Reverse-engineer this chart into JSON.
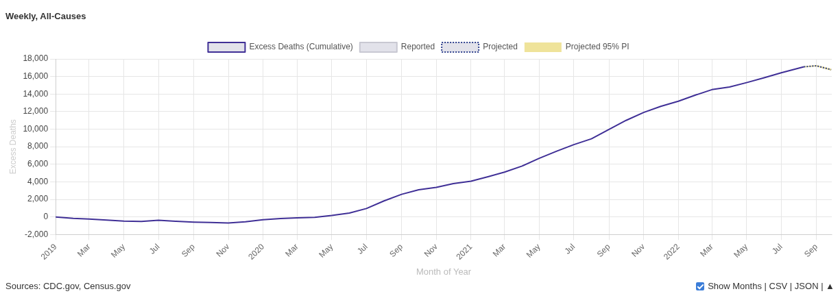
{
  "chart_data": {
    "type": "line",
    "title": "Weekly, All-Causes",
    "xlabel": "Month of Year",
    "ylabel": "Excess Deaths",
    "xlim": [
      "2019-01",
      "2022-09-28"
    ],
    "xticks": [
      {
        "value": "2019-01",
        "label": "2019"
      },
      {
        "value": "2019-03",
        "label": "Mar"
      },
      {
        "value": "2019-05",
        "label": "May"
      },
      {
        "value": "2019-07",
        "label": "Jul"
      },
      {
        "value": "2019-09",
        "label": "Sep"
      },
      {
        "value": "2019-11",
        "label": "Nov"
      },
      {
        "value": "2020-01",
        "label": "2020"
      },
      {
        "value": "2020-03",
        "label": "Mar"
      },
      {
        "value": "2020-05",
        "label": "May"
      },
      {
        "value": "2020-07",
        "label": "Jul"
      },
      {
        "value": "2020-09",
        "label": "Sep"
      },
      {
        "value": "2020-11",
        "label": "Nov"
      },
      {
        "value": "2021-01",
        "label": "2021"
      },
      {
        "value": "2021-03",
        "label": "Mar"
      },
      {
        "value": "2021-05",
        "label": "May"
      },
      {
        "value": "2021-07",
        "label": "Jul"
      },
      {
        "value": "2021-09",
        "label": "Sep"
      },
      {
        "value": "2021-11",
        "label": "Nov"
      },
      {
        "value": "2022-01",
        "label": "2022"
      },
      {
        "value": "2022-03",
        "label": "Mar"
      },
      {
        "value": "2022-05",
        "label": "May"
      },
      {
        "value": "2022-07",
        "label": "Jul"
      },
      {
        "value": "2022-09",
        "label": "Sep"
      }
    ],
    "ylim": [
      -2000,
      18000
    ],
    "yticks": [
      {
        "value": -2000,
        "label": "-2,000"
      },
      0,
      {
        "value": 2000,
        "label": "2,000"
      },
      {
        "value": 4000,
        "label": "4,000"
      },
      {
        "value": 6000,
        "label": "6,000"
      },
      {
        "value": 8000,
        "label": "8,000"
      },
      {
        "value": 10000,
        "label": "10,000"
      },
      {
        "value": 12000,
        "label": "12,000"
      },
      {
        "value": 14000,
        "label": "14,000"
      },
      {
        "value": 16000,
        "label": "16,000"
      },
      {
        "value": 18000,
        "label": "18,000"
      }
    ],
    "grid": true,
    "legend": "top",
    "marker": "none",
    "series": [
      {
        "name": "Excess Deaths (Cumulative)",
        "color": "#3f2f96",
        "line_style": "solid",
        "x": [
          "2019-01",
          "2019-02",
          "2019-03",
          "2019-04",
          "2019-05",
          "2019-06",
          "2019-07",
          "2019-08",
          "2019-09",
          "2019-10",
          "2019-11",
          "2019-12",
          "2020-01",
          "2020-02",
          "2020-03",
          "2020-04",
          "2020-05",
          "2020-06",
          "2020-07",
          "2020-08",
          "2020-09",
          "2020-10",
          "2020-11",
          "2020-12",
          "2021-01",
          "2021-02",
          "2021-03",
          "2021-04",
          "2021-05",
          "2021-06",
          "2021-07",
          "2021-08",
          "2021-09",
          "2021-10",
          "2021-11",
          "2021-12",
          "2022-01",
          "2022-02",
          "2022-03",
          "2022-04",
          "2022-05",
          "2022-06",
          "2022-07",
          "2022-08-10"
        ],
        "values": [
          0,
          -150,
          -240,
          -350,
          -480,
          -520,
          -380,
          -500,
          -580,
          -620,
          -690,
          -550,
          -310,
          -180,
          -100,
          -50,
          170,
          450,
          960,
          1830,
          2580,
          3100,
          3370,
          3800,
          4070,
          4600,
          5110,
          5800,
          6680,
          7500,
          8240,
          8900,
          9980,
          11000,
          11900,
          12600,
          13180,
          13900,
          14500,
          14800,
          15300,
          15850,
          16420,
          17100
        ]
      },
      {
        "name": "Reported",
        "color": "#c8c8d2",
        "line_style": "solid"
      },
      {
        "name": "Projected",
        "color": "#2c3e8c",
        "line_style": "dotted",
        "x": [
          "2022-08-10",
          "2022-09-01",
          "2022-09-27"
        ],
        "values": [
          17100,
          17220,
          16770
        ]
      },
      {
        "name": "Projected 95% PI",
        "color": "#efe39a",
        "type": "line",
        "x": [
          "2022-08-10",
          "2022-09-01",
          "2022-09-27"
        ],
        "values": [
          17100,
          17220,
          16770
        ],
        "lower": [
          17100,
          17150,
          16650
        ],
        "upper": [
          17100,
          17290,
          16880
        ]
      }
    ],
    "annotations": [
      "Sources: CDC.gov, Census.gov",
      "Show Months | CSV | JSON | ▲"
    ]
  }
}
